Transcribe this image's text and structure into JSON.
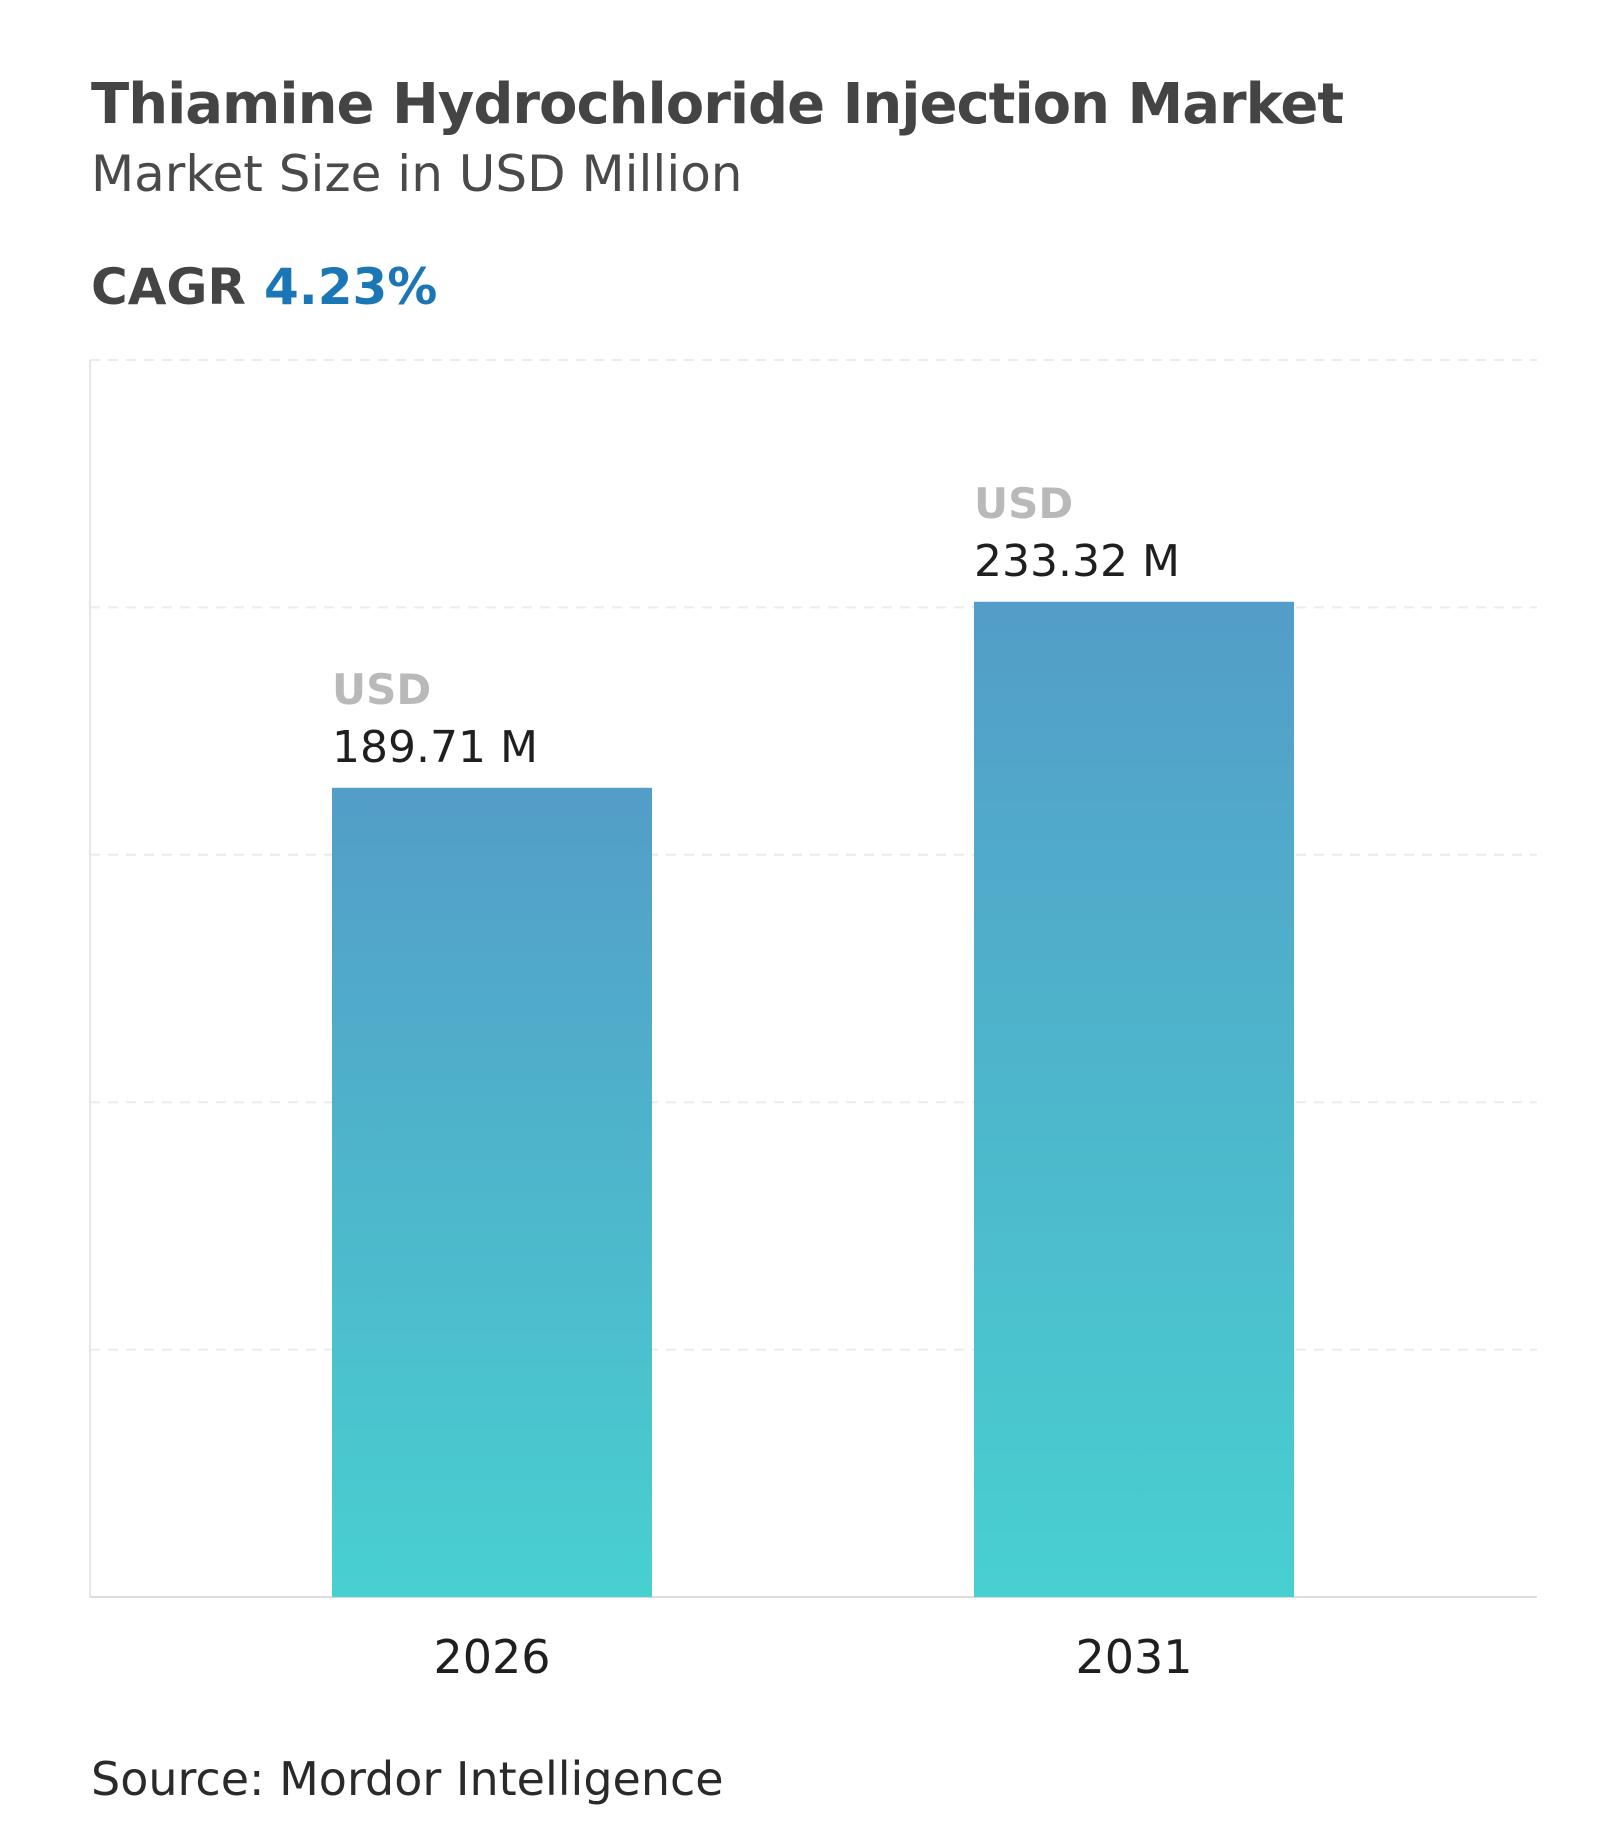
{
  "header": {
    "title": "Thiamine Hydrochloride Injection Market",
    "subtitle": "Market Size in USD Million",
    "cagr_label": "CAGR",
    "cagr_value": "4.23%"
  },
  "footer": {
    "source": "Source: Mordor Intelligence"
  },
  "colors": {
    "bar_top": "#539dc8",
    "bar_bottom": "#48d0d0",
    "cagr_accent": "#1b76b5"
  },
  "chart_data": {
    "type": "bar",
    "categories": [
      "2026",
      "2031"
    ],
    "values": [
      189.71,
      233.32
    ],
    "value_prefix": "USD",
    "value_labels": [
      "189.71 M",
      "233.32 M"
    ],
    "title": "Thiamine Hydrochloride Injection Market",
    "subtitle": "Market Size in USD Million",
    "xlabel": "",
    "ylabel": "",
    "ylim": [
      0,
      290
    ],
    "grid": true,
    "legend": "none"
  }
}
